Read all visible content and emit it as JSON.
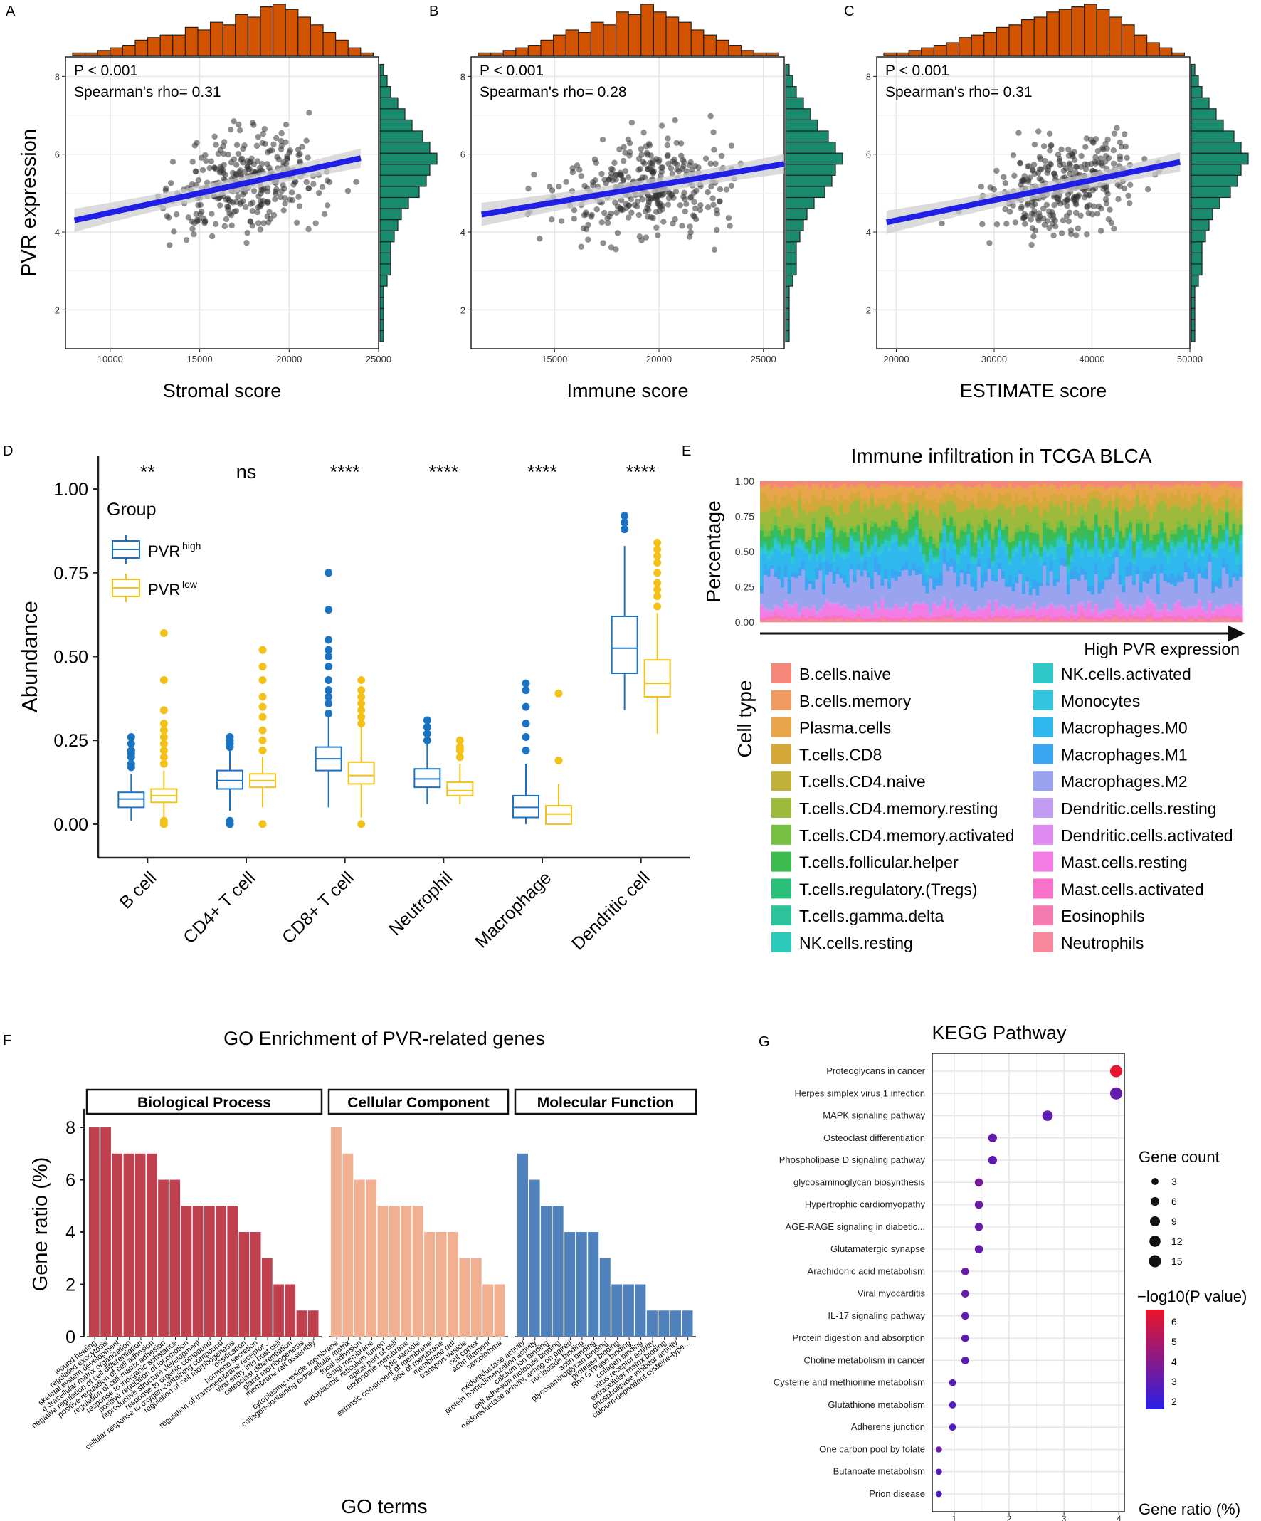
{
  "colors": {
    "point": "#333333",
    "fit_line": "#1f1fe6",
    "ci_band": "#cccccc",
    "hist_top": "#d35400",
    "hist_right": "#1a8a6e",
    "pvr_high": "#1a73c2",
    "pvr_low": "#f2c21b",
    "go_bp": "#c0404f",
    "go_cc": "#f2b092",
    "go_mf": "#4f81bd"
  },
  "chart_data": [
    {
      "panel": "A",
      "type": "scatter",
      "xlabel": "Stromal score",
      "ylabel": "PVR expression",
      "p_text": "P < 0.001",
      "rho_text": "Spearman's rho= 0.31",
      "rho": 0.31,
      "xlim": [
        7500,
        25000
      ],
      "ylim": [
        1,
        8.5
      ],
      "xticks": [
        "10000",
        "15000",
        "20000",
        "25000"
      ],
      "xtickvals": [
        10000,
        15000,
        20000,
        25000
      ],
      "yticks": [
        "2",
        "4",
        "6",
        "8"
      ],
      "ytickvals": [
        2,
        4,
        6,
        8
      ],
      "fit": {
        "x0": 8000,
        "y0": 4.3,
        "x1": 24000,
        "y1": 5.9
      },
      "x_center": 17500,
      "x_spread": 3200,
      "hist_top": [
        1,
        1,
        2,
        3,
        4,
        6,
        7,
        8,
        8,
        11,
        10,
        13,
        12,
        16,
        15,
        19,
        20,
        18,
        15,
        12,
        9,
        6,
        3,
        1
      ],
      "hist_right": [
        1,
        1,
        1,
        1,
        1,
        2,
        3,
        3,
        3,
        4,
        5,
        6,
        8,
        11,
        13,
        14,
        16,
        14,
        12,
        9,
        7,
        5,
        3,
        2,
        1
      ]
    },
    {
      "panel": "B",
      "type": "scatter",
      "xlabel": "Immune score",
      "ylabel": "",
      "p_text": "P < 0.001",
      "rho_text": "Spearman's rho= 0.28",
      "rho": 0.28,
      "xlim": [
        11000,
        26000
      ],
      "ylim": [
        1,
        8.5
      ],
      "xticks": [
        "15000",
        "20000",
        "25000"
      ],
      "xtickvals": [
        15000,
        20000,
        25000
      ],
      "yticks": [
        "2",
        "4",
        "6",
        "8"
      ],
      "ytickvals": [
        2,
        4,
        6,
        8
      ],
      "fit": {
        "x0": 11500,
        "y0": 4.45,
        "x1": 26000,
        "y1": 5.75
      },
      "x_center": 19500,
      "x_spread": 3000,
      "hist_top": [
        1,
        1,
        2,
        3,
        4,
        6,
        8,
        10,
        9,
        13,
        12,
        17,
        16,
        20,
        17,
        15,
        13,
        10,
        8,
        6,
        4,
        2,
        1,
        1
      ],
      "hist_right": [
        1,
        1,
        1,
        1,
        1,
        2,
        3,
        3,
        3,
        4,
        5,
        6,
        8,
        11,
        13,
        14,
        16,
        14,
        12,
        9,
        7,
        5,
        3,
        2,
        1
      ]
    },
    {
      "panel": "C",
      "type": "scatter",
      "xlabel": "ESTIMATE score",
      "ylabel": "",
      "p_text": "P < 0.001",
      "rho_text": "Spearman's rho= 0.31",
      "rho": 0.31,
      "xlim": [
        18000,
        50000
      ],
      "ylim": [
        1,
        8.5
      ],
      "xticks": [
        "20000",
        "30000",
        "40000",
        "50000"
      ],
      "xtickvals": [
        20000,
        30000,
        40000,
        50000
      ],
      "yticks": [
        "2",
        "4",
        "6",
        "8"
      ],
      "ytickvals": [
        2,
        4,
        6,
        8
      ],
      "fit": {
        "x0": 19000,
        "y0": 4.25,
        "x1": 49000,
        "y1": 5.8
      },
      "x_center": 37500,
      "x_spread": 6000,
      "hist_top": [
        1,
        1,
        2,
        3,
        4,
        5,
        7,
        8,
        9,
        11,
        12,
        14,
        15,
        17,
        18,
        19,
        20,
        18,
        15,
        12,
        8,
        5,
        3,
        1
      ],
      "hist_right": [
        1,
        1,
        1,
        1,
        1,
        2,
        3,
        3,
        3,
        4,
        5,
        6,
        8,
        11,
        13,
        14,
        16,
        14,
        12,
        9,
        7,
        5,
        3,
        2,
        1
      ]
    },
    {
      "panel": "D",
      "type": "box",
      "ylabel": "Abundance",
      "legend_title": "Group",
      "legend_high": "PVR",
      "legend_high_sup": "high",
      "legend_low": "PVR",
      "legend_low_sup": "low",
      "ylim": [
        -0.1,
        1.1
      ],
      "yticks": [
        "0.00",
        "0.25",
        "0.50",
        "0.75",
        "1.00"
      ],
      "ytickvals": [
        0,
        0.25,
        0.5,
        0.75,
        1.0
      ],
      "categories": [
        "B cell",
        "CD4+ T cell",
        "CD8+ T cell",
        "Neutrophil",
        "Macrophage",
        "Dendritic cell"
      ],
      "significance": [
        "**",
        "ns",
        "****",
        "****",
        "****",
        "****"
      ],
      "high": [
        {
          "min": 0.01,
          "q1": 0.05,
          "med": 0.075,
          "q3": 0.095,
          "max": 0.15,
          "out": [
            0.17,
            0.18,
            0.2,
            0.21,
            0.22,
            0.24,
            0.26
          ]
        },
        {
          "min": 0.04,
          "q1": 0.105,
          "med": 0.13,
          "q3": 0.16,
          "max": 0.22,
          "out": [
            0.23,
            0.24,
            0.25,
            0.26,
            0.0,
            0.01
          ]
        },
        {
          "min": 0.05,
          "q1": 0.16,
          "med": 0.195,
          "q3": 0.23,
          "max": 0.32,
          "out": [
            0.33,
            0.36,
            0.38,
            0.4,
            0.43,
            0.47,
            0.5,
            0.52,
            0.55,
            0.64,
            0.75
          ]
        },
        {
          "min": 0.06,
          "q1": 0.11,
          "med": 0.135,
          "q3": 0.165,
          "max": 0.24,
          "out": [
            0.25,
            0.27,
            0.29,
            0.31
          ]
        },
        {
          "min": 0.0,
          "q1": 0.02,
          "med": 0.05,
          "q3": 0.085,
          "max": 0.18,
          "out": [
            0.22,
            0.26,
            0.3,
            0.35,
            0.4,
            0.42
          ]
        },
        {
          "min": 0.34,
          "q1": 0.45,
          "med": 0.525,
          "q3": 0.62,
          "max": 0.83,
          "out": [
            0.88,
            0.9,
            0.92
          ]
        }
      ],
      "low": [
        {
          "min": 0.02,
          "q1": 0.065,
          "med": 0.085,
          "q3": 0.105,
          "max": 0.16,
          "out": [
            0.0,
            0.01,
            0.18,
            0.2,
            0.22,
            0.24,
            0.26,
            0.28,
            0.3,
            0.34,
            0.43,
            0.57
          ]
        },
        {
          "min": 0.05,
          "q1": 0.11,
          "med": 0.13,
          "q3": 0.15,
          "max": 0.2,
          "out": [
            0.0,
            0.22,
            0.25,
            0.28,
            0.32,
            0.35,
            0.38,
            0.43,
            0.47,
            0.52
          ]
        },
        {
          "min": 0.02,
          "q1": 0.12,
          "med": 0.145,
          "q3": 0.185,
          "max": 0.29,
          "out": [
            0.0,
            0.3,
            0.32,
            0.34,
            0.36,
            0.38,
            0.4,
            0.43
          ]
        },
        {
          "min": 0.06,
          "q1": 0.085,
          "med": 0.1,
          "q3": 0.125,
          "max": 0.18,
          "out": [
            0.2,
            0.22,
            0.23,
            0.25
          ]
        },
        {
          "min": 0.0,
          "q1": 0.0,
          "med": 0.03,
          "q3": 0.055,
          "max": 0.12,
          "out": [
            0.19,
            0.39
          ]
        },
        {
          "min": 0.27,
          "q1": 0.38,
          "med": 0.42,
          "q3": 0.49,
          "max": 0.63,
          "out": [
            0.65,
            0.68,
            0.7,
            0.72,
            0.75,
            0.78,
            0.8,
            0.82,
            0.84
          ]
        }
      ]
    },
    {
      "panel": "E",
      "type": "area",
      "title": "Immune infiltration in TCGA BLCA",
      "ylabel": "Percentage",
      "xlabel": "High PVR expression",
      "yticks": [
        "0.00",
        "0.25",
        "0.50",
        "0.75",
        "1.00"
      ],
      "ytickvals": [
        0,
        0.25,
        0.5,
        0.75,
        1.0
      ],
      "legend_title": "Cell type",
      "cell_types": [
        {
          "name": "B.cells.naive",
          "color": "#f4877a",
          "prop": 0.03
        },
        {
          "name": "B.cells.memory",
          "color": "#ee9a60",
          "prop": 0.01
        },
        {
          "name": "Plasma.cells",
          "color": "#e8a54b",
          "prop": 0.07
        },
        {
          "name": "T.cells.CD8",
          "color": "#d4a93a",
          "prop": 0.07
        },
        {
          "name": "T.cells.CD4.naive",
          "color": "#bfb13a",
          "prop": 0.01
        },
        {
          "name": "T.cells.CD4.memory.resting",
          "color": "#9eba3c",
          "prop": 0.12
        },
        {
          "name": "T.cells.CD4.memory.activated",
          "color": "#76c043",
          "prop": 0.03
        },
        {
          "name": "T.cells.follicular.helper",
          "color": "#3dbb4f",
          "prop": 0.06
        },
        {
          "name": "T.cells.regulatory.(Tregs)",
          "color": "#2bbf7a",
          "prop": 0.04
        },
        {
          "name": "T.cells.gamma.delta",
          "color": "#2cc39b",
          "prop": 0.01
        },
        {
          "name": "NK.cells.resting",
          "color": "#2cc9b9",
          "prop": 0.01
        },
        {
          "name": "NK.cells.activated",
          "color": "#2ec8c8",
          "prop": 0.02
        },
        {
          "name": "Monocytes",
          "color": "#33c4e0",
          "prop": 0.02
        },
        {
          "name": "Macrophages.M0",
          "color": "#2fb8ee",
          "prop": 0.14
        },
        {
          "name": "Macrophages.M1",
          "color": "#3aa6f2",
          "prop": 0.06
        },
        {
          "name": "Macrophages.M2",
          "color": "#99a3ef",
          "prop": 0.18
        },
        {
          "name": "Dendritic.cells.resting",
          "color": "#c19cf0",
          "prop": 0.01
        },
        {
          "name": "Dendritic.cells.activated",
          "color": "#de8af0",
          "prop": 0.01
        },
        {
          "name": "Mast.cells.resting",
          "color": "#f37ce4",
          "prop": 0.06
        },
        {
          "name": "Mast.cells.activated",
          "color": "#f772c8",
          "prop": 0.01
        },
        {
          "name": "Eosinophils",
          "color": "#f57ab0",
          "prop": 0.01
        },
        {
          "name": "Neutrophils",
          "color": "#f7879a",
          "prop": 0.02
        }
      ]
    },
    {
      "panel": "F",
      "type": "bar",
      "title": "GO Enrichment of PVR-related genes",
      "xlabel": "GO terms",
      "ylabel": "Gene ratio (%)",
      "ylim": [
        0,
        8.6
      ],
      "yticks": [
        "0",
        "2",
        "4",
        "6",
        "8"
      ],
      "ytickvals": [
        0,
        2,
        4,
        6,
        8
      ],
      "groups": [
        {
          "name": "Biological Process",
          "color": "#c0404f",
          "terms": [
            "wound healing",
            "regulated exocytosis",
            "skeletal system development",
            "extracellular matrix organization",
            "negative regulation of cell differentiation",
            "positive regulation of cell adhesion",
            "regulation of cell-matrix adhesion",
            "response to inorganic substance",
            "positive regulation of locomotion",
            "reproductive structure development",
            "response to organic compound",
            "cellular response to oxygen-containing compound",
            "regulation of cell morphogenesis",
            "ossification",
            "hormone secretion",
            "regulation of transmembrane receptor...",
            "viral entry into host cell",
            "osteoclast differentiation",
            "gland morphogenesis",
            "membrane raft assembly"
          ],
          "values": [
            8,
            8,
            7,
            7,
            7,
            7,
            6,
            6,
            5,
            5,
            5,
            5,
            5,
            4,
            4,
            3,
            2,
            2,
            1,
            1
          ]
        },
        {
          "name": "Cellular Component",
          "color": "#f2b092",
          "terms": [
            "cytoplasmic vesicle membrane",
            "collagen-containing extracellular matrix",
            "focal adhesion",
            "Golgi membrane",
            "endoplasmic reticulum lumen",
            "apical part of cell",
            "endosome membrane",
            "lytic vacuole",
            "extrinsic component of membrane",
            "side of membrane",
            "membrane raft",
            "transport vesicle",
            "cell cortex",
            "actin filament",
            "sarcolemma"
          ],
          "values": [
            8,
            7,
            6,
            6,
            5,
            5,
            5,
            5,
            4,
            4,
            4,
            3,
            3,
            2,
            2
          ]
        },
        {
          "name": "Molecular Function",
          "color": "#4f81bd",
          "terms": [
            "oxidoreductase activity",
            "protein homodimerization activity",
            "calcium ion binding",
            "cell adhesion molecule binding",
            "oxidoreductase activity, acting on paired",
            "nucleoside binding",
            "actin binding",
            "glycosaminoglycan binding",
            "protease binding",
            "Rho GTPase binding",
            "collagen binding",
            "virus receptor activity",
            "extracellular matrix binding",
            "phospholipase inhibitor activity",
            "calcium-dependent cysteine-type..."
          ],
          "values": [
            7,
            6,
            5,
            5,
            4,
            4,
            4,
            3,
            2,
            2,
            2,
            1,
            1,
            1,
            1
          ]
        }
      ]
    },
    {
      "panel": "G",
      "type": "scatter",
      "title": "KEGG Pathway",
      "xlabel": "Gene ratio (%)",
      "xlim": [
        0.6,
        4.1
      ],
      "xticks": [
        "1",
        "2",
        "3",
        "4"
      ],
      "xtickvals": [
        1,
        2,
        3,
        4
      ],
      "size_legend_title": "Gene count",
      "size_legend": [
        "3",
        "6",
        "9",
        "12",
        "15"
      ],
      "size_values": [
        3,
        6,
        9,
        12,
        15
      ],
      "color_legend_title": "−log10(P value)",
      "color_legend": [
        "6",
        "5",
        "4",
        "3",
        "2"
      ],
      "color_values": [
        6,
        5,
        4,
        3,
        2
      ],
      "color_range": [
        1.6,
        6.6
      ],
      "pathways": [
        {
          "name": "Proteoglycans in cancer",
          "ratio": 3.95,
          "count": 15,
          "logp": 6.5
        },
        {
          "name": "Herpes simplex virus 1 infection",
          "ratio": 3.95,
          "count": 15,
          "logp": 3.1
        },
        {
          "name": "MAPK signaling pathway",
          "ratio": 2.7,
          "count": 10,
          "logp": 2.9
        },
        {
          "name": "Osteoclast differentiation",
          "ratio": 1.7,
          "count": 6,
          "logp": 3.1
        },
        {
          "name": "Phospholipase D signaling pathway",
          "ratio": 1.7,
          "count": 6,
          "logp": 3.0
        },
        {
          "name": "glycosaminoglycan biosynthesis",
          "ratio": 1.45,
          "count": 5,
          "logp": 3.6
        },
        {
          "name": "Hypertrophic cardiomyopathy",
          "ratio": 1.45,
          "count": 5,
          "logp": 3.3
        },
        {
          "name": "AGE-RAGE signaling in diabetic...",
          "ratio": 1.45,
          "count": 5,
          "logp": 3.2
        },
        {
          "name": "Glutamatergic synapse",
          "ratio": 1.45,
          "count": 5,
          "logp": 3.1
        },
        {
          "name": "Arachidonic acid metabolism",
          "ratio": 1.2,
          "count": 4,
          "logp": 3.3
        },
        {
          "name": "Viral myocarditis",
          "ratio": 1.2,
          "count": 4,
          "logp": 3.2
        },
        {
          "name": "IL-17 signaling pathway",
          "ratio": 1.2,
          "count": 4,
          "logp": 3.0
        },
        {
          "name": "Protein digestion and absorption",
          "ratio": 1.2,
          "count": 4,
          "logp": 3.0
        },
        {
          "name": "Choline metabolism in cancer",
          "ratio": 1.2,
          "count": 4,
          "logp": 2.9
        },
        {
          "name": "Cysteine and methionine metabolism",
          "ratio": 0.97,
          "count": 3,
          "logp": 2.8
        },
        {
          "name": "Glutathione metabolism",
          "ratio": 0.97,
          "count": 3,
          "logp": 2.7
        },
        {
          "name": "Adherens junction",
          "ratio": 0.97,
          "count": 3,
          "logp": 2.6
        },
        {
          "name": "One carbon pool by folate",
          "ratio": 0.72,
          "count": 2,
          "logp": 3.3
        },
        {
          "name": "Butanoate metabolism",
          "ratio": 0.72,
          "count": 2,
          "logp": 2.7
        },
        {
          "name": "Prion disease",
          "ratio": 0.72,
          "count": 2,
          "logp": 2.5
        }
      ]
    }
  ],
  "panel_labels": {
    "A": "A",
    "B": "B",
    "C": "C",
    "D": "D",
    "E": "E",
    "F": "F",
    "G": "G"
  }
}
